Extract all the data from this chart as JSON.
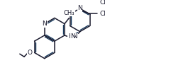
{
  "bg_color": "#ffffff",
  "line_color": "#1a1a2e",
  "line_color2": "#1a3a5c",
  "lw": 1.1,
  "lw2": 1.0,
  "font_size": 6.5,
  "figsize": [
    2.72,
    1.06
  ],
  "dpi": 100,
  "xlim": [
    0,
    27.2
  ],
  "ylim": [
    0,
    10.6
  ]
}
